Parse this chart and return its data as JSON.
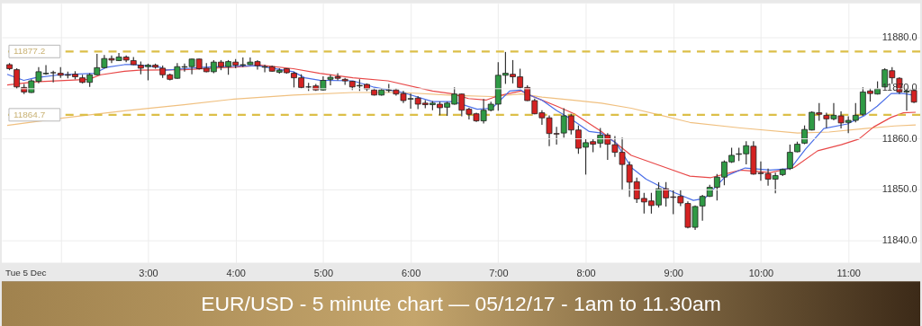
{
  "chart_data": {
    "type": "candlestick",
    "title": "EUR/USD - 5 minute chart — 05/12/17 - 1am to 11.30am",
    "annotations": [
      "Tue 5 Dec"
    ],
    "x": [
      1.4167,
      1.5,
      1.5833,
      1.6667,
      1.75,
      1.8333,
      1.9167,
      2,
      2.0833,
      2.1667,
      2.25,
      2.3333,
      2.4167,
      2.5,
      2.5833,
      2.6667,
      2.75,
      2.8333,
      2.9167,
      3,
      3.0833,
      3.1667,
      3.25,
      3.3333,
      3.4167,
      3.5,
      3.5833,
      3.6667,
      3.75,
      3.8333,
      3.9167,
      4,
      4.0833,
      4.1667,
      4.25,
      4.3333,
      4.4167,
      4.5,
      4.5833,
      4.6667,
      4.75,
      4.8333,
      4.9167,
      5,
      5.0833,
      5.1667,
      5.25,
      5.3333,
      5.4167,
      5.5,
      5.5833,
      5.6667,
      5.75,
      5.8333,
      5.9167,
      6,
      6.0833,
      6.1667,
      6.25,
      6.3333,
      6.4167,
      6.5,
      6.5833,
      6.6667,
      6.75,
      6.8333,
      6.9167,
      7,
      7.0833,
      7.1667,
      7.25,
      7.3333,
      7.4167,
      7.5,
      7.5833,
      7.6667,
      7.75,
      7.8333,
      7.9167,
      8,
      8.0833,
      8.1667,
      8.25,
      8.3333,
      8.4167,
      8.5,
      8.5833,
      8.6667,
      8.75,
      8.8333,
      8.9167,
      9,
      9.0833,
      9.1667,
      9.25,
      9.3333,
      9.4167,
      9.5,
      9.5833,
      9.6667,
      9.75,
      9.8333,
      9.9167,
      10,
      10.0833,
      10.1667,
      10.25,
      10.3333,
      10.4167,
      10.5,
      10.5833,
      10.6667,
      10.75,
      10.8333,
      10.9167,
      11,
      11.0833,
      11.1667,
      11.25,
      11.3333,
      11.4167,
      11.5,
      11.5833,
      11.6667,
      11.75
    ],
    "ohlc": [
      [
        11874.6,
        11874.9,
        11873.5,
        11873.8
      ],
      [
        11873.6,
        11873.9,
        11869.8,
        11870.2
      ],
      [
        11870.1,
        11870.8,
        11868.8,
        11869.2
      ],
      [
        11869.1,
        11871.7,
        11869.0,
        11871.4
      ],
      [
        11871.3,
        11874.1,
        11870.9,
        11873.2
      ],
      [
        11872.8,
        11874.5,
        11872.6,
        11872.9
      ],
      [
        11873.0,
        11873.4,
        11871.1,
        11873.0
      ],
      [
        11872.9,
        11874.1,
        11872.0,
        11872.5
      ],
      [
        11872.6,
        11873.2,
        11871.9,
        11872.5
      ],
      [
        11872.7,
        11873.3,
        11871.7,
        11872.2
      ],
      [
        11872.0,
        11872.6,
        11870.9,
        11871.1
      ],
      [
        11871.1,
        11872.9,
        11870.2,
        11872.6
      ],
      [
        11872.6,
        11876.7,
        11872.5,
        11874.0
      ],
      [
        11874.0,
        11876.5,
        11873.9,
        11875.8
      ],
      [
        11875.8,
        11876.4,
        11874.9,
        11875.5
      ],
      [
        11875.4,
        11876.9,
        11875.3,
        11876.1
      ],
      [
        11876.1,
        11876.4,
        11875.1,
        11875.5
      ],
      [
        11875.4,
        11876.1,
        11874.5,
        11874.6
      ],
      [
        11874.5,
        11875.2,
        11872.7,
        11873.9
      ],
      [
        11874.2,
        11874.8,
        11871.5,
        11874.5
      ],
      [
        11874.5,
        11874.8,
        11873.8,
        11874.1
      ],
      [
        11873.9,
        11874.4,
        11872.0,
        11872.6
      ],
      [
        11872.6,
        11872.8,
        11871.5,
        11871.7
      ],
      [
        11871.9,
        11874.9,
        11871.8,
        11874.2
      ],
      [
        11874.1,
        11874.8,
        11873.2,
        11874.2
      ],
      [
        11874.2,
        11875.8,
        11872.7,
        11875.7
      ],
      [
        11875.7,
        11875.8,
        11873.6,
        11873.8
      ],
      [
        11873.9,
        11874.9,
        11873.1,
        11873.2
      ],
      [
        11873.2,
        11875.5,
        11872.9,
        11875.1
      ],
      [
        11875.1,
        11875.5,
        11873.5,
        11874.2
      ],
      [
        11874.2,
        11875.5,
        11872.6,
        11875.2
      ],
      [
        11875.1,
        11875.7,
        11873.9,
        11874.5
      ],
      [
        11874.5,
        11876.0,
        11874.1,
        11874.6
      ],
      [
        11874.6,
        11876.0,
        11874.5,
        11875.1
      ],
      [
        11875.2,
        11875.5,
        11873.6,
        11874.4
      ],
      [
        11874.1,
        11874.6,
        11873.1,
        11874.2
      ],
      [
        11874.2,
        11874.4,
        11873.2,
        11873.3
      ],
      [
        11873.1,
        11873.9,
        11872.8,
        11873.5
      ],
      [
        11873.8,
        11873.9,
        11872.8,
        11873.0
      ],
      [
        11872.9,
        11873.2,
        11870.1,
        11872.0
      ],
      [
        11872.0,
        11872.7,
        11869.9,
        11870.1
      ],
      [
        11870.2,
        11871.0,
        11869.4,
        11870.2
      ],
      [
        11870.4,
        11870.8,
        11869.4,
        11869.6
      ],
      [
        11869.6,
        11872.3,
        11869.5,
        11871.5
      ],
      [
        11871.7,
        11872.6,
        11870.5,
        11872.1
      ],
      [
        11872.2,
        11872.9,
        11871.5,
        11871.9
      ],
      [
        11871.7,
        11872.0,
        11870.6,
        11871.4
      ],
      [
        11871.3,
        11871.4,
        11869.6,
        11870.2
      ],
      [
        11870.4,
        11871.7,
        11869.4,
        11870.5
      ],
      [
        11870.7,
        11870.9,
        11869.4,
        11869.8
      ],
      [
        11869.6,
        11869.9,
        11868.5,
        11868.6
      ],
      [
        11868.6,
        11869.9,
        11868.5,
        11869.6
      ],
      [
        11869.5,
        11870.8,
        11869.1,
        11869.6
      ],
      [
        11869.6,
        11869.9,
        11868.5,
        11868.8
      ],
      [
        11868.9,
        11869.4,
        11867.0,
        11867.5
      ],
      [
        11867.8,
        11868.9,
        11865.9,
        11867.9
      ],
      [
        11868.0,
        11868.4,
        11865.8,
        11866.8
      ],
      [
        11867.0,
        11867.6,
        11866.0,
        11866.7
      ],
      [
        11866.7,
        11867.4,
        11865.6,
        11867.0
      ],
      [
        11866.8,
        11867.3,
        11864.6,
        11866.1
      ],
      [
        11866.2,
        11867.3,
        11864.5,
        11867.0
      ],
      [
        11866.8,
        11870.1,
        11866.7,
        11868.8
      ],
      [
        11868.8,
        11868.9,
        11864.4,
        11865.6
      ],
      [
        11865.8,
        11866.1,
        11863.8,
        11864.8
      ],
      [
        11864.9,
        11865.1,
        11863.3,
        11863.5
      ],
      [
        11863.5,
        11867.8,
        11863.0,
        11865.6
      ],
      [
        11865.6,
        11867.3,
        11865.4,
        11866.8
      ],
      [
        11866.8,
        11875.1,
        11865.5,
        11872.5
      ],
      [
        11872.5,
        11877.1,
        11870.8,
        11872.9
      ],
      [
        11872.7,
        11875.5,
        11870.9,
        11872.2
      ],
      [
        11872.2,
        11873.8,
        11869.9,
        11870.1
      ],
      [
        11870.1,
        11870.5,
        11867.4,
        11867.5
      ],
      [
        11867.5,
        11867.9,
        11864.8,
        11864.9
      ],
      [
        11865.1,
        11865.6,
        11862.7,
        11864.1
      ],
      [
        11864.1,
        11864.6,
        11858.5,
        11861.0
      ],
      [
        11861.0,
        11862.3,
        11858.8,
        11860.9
      ],
      [
        11861.1,
        11866.0,
        11860.2,
        11864.5
      ],
      [
        11864.5,
        11864.9,
        11860.8,
        11861.7
      ],
      [
        11861.7,
        11862.6,
        11857.0,
        11858.1
      ],
      [
        11858.3,
        11859.9,
        11852.9,
        11859.2
      ],
      [
        11859.4,
        11859.9,
        11857.3,
        11858.9
      ],
      [
        11859.1,
        11862.1,
        11858.2,
        11860.7
      ],
      [
        11860.7,
        11861.1,
        11855.8,
        11858.9
      ],
      [
        11858.8,
        11860.5,
        11856.4,
        11857.3
      ],
      [
        11857.3,
        11860.2,
        11849.8,
        11854.9
      ],
      [
        11854.8,
        11855.5,
        11848.5,
        11851.4
      ],
      [
        11851.5,
        11852.3,
        11847.3,
        11848.1
      ],
      [
        11848.2,
        11849.3,
        11845.2,
        11847.5
      ],
      [
        11847.7,
        11849.3,
        11845.2,
        11846.8
      ],
      [
        11846.9,
        11851.4,
        11846.4,
        11850.1
      ],
      [
        11850.1,
        11851.4,
        11846.6,
        11848.3
      ],
      [
        11848.5,
        11849.8,
        11845.1,
        11848.4
      ],
      [
        11848.6,
        11849.9,
        11846.7,
        11847.3
      ],
      [
        11847.2,
        11847.6,
        11842.3,
        11842.5
      ],
      [
        11842.5,
        11846.8,
        11842.0,
        11846.6
      ],
      [
        11846.7,
        11848.9,
        11843.8,
        11848.6
      ],
      [
        11848.6,
        11850.9,
        11848.5,
        11850.4
      ],
      [
        11850.4,
        11853.0,
        11847.8,
        11852.4
      ],
      [
        11852.4,
        11855.7,
        11850.8,
        11855.4
      ],
      [
        11855.4,
        11858.2,
        11855.2,
        11856.7
      ],
      [
        11856.9,
        11858.2,
        11855.6,
        11857.0
      ],
      [
        11857.0,
        11859.5,
        11854.9,
        11858.6
      ],
      [
        11858.5,
        11859.5,
        11852.9,
        11853.0
      ],
      [
        11853.2,
        11855.5,
        11851.7,
        11853.1
      ],
      [
        11853.1,
        11854.1,
        11850.7,
        11852.0
      ],
      [
        11852.0,
        11853.3,
        11849.2,
        11852.7
      ],
      [
        11852.9,
        11854.1,
        11852.6,
        11853.9
      ],
      [
        11854.1,
        11858.8,
        11853.8,
        11857.3
      ],
      [
        11857.4,
        11859.4,
        11857.3,
        11858.9
      ],
      [
        11859.1,
        11862.6,
        11858.9,
        11861.8
      ],
      [
        11861.7,
        11865.4,
        11861.6,
        11865.2
      ],
      [
        11865.1,
        11867.0,
        11863.5,
        11864.8
      ],
      [
        11864.6,
        11865.1,
        11862.1,
        11863.9
      ],
      [
        11863.9,
        11867.0,
        11863.6,
        11864.6
      ],
      [
        11864.5,
        11865.4,
        11862.0,
        11863.1
      ],
      [
        11863.2,
        11864.4,
        11861.1,
        11863.6
      ],
      [
        11863.6,
        11867.0,
        11863.2,
        11864.6
      ],
      [
        11864.8,
        11870.1,
        11864.5,
        11869.2
      ],
      [
        11869.4,
        11869.9,
        11867.3,
        11868.9
      ],
      [
        11868.8,
        11871.3,
        11868.7,
        11869.8
      ],
      [
        11870.2,
        11873.9,
        11870.1,
        11873.6
      ],
      [
        11873.4,
        11874.1,
        11870.8,
        11872.0
      ],
      [
        11871.9,
        11872.1,
        11868.8,
        11869.2
      ],
      [
        11869.2,
        11869.9,
        11865.5,
        11869.4
      ],
      [
        11869.5,
        11869.9,
        11867.0,
        11867.2
      ]
    ],
    "series": [
      {
        "type": "line",
        "color": "#f0c080",
        "x": [
          1.39,
          2.05,
          2.73,
          3.41,
          3.98,
          4.66,
          5.34,
          5.91,
          6.52,
          6.93,
          7.26,
          7.5,
          7.84,
          8.18,
          8.52,
          8.86,
          9.19,
          9.77,
          10.42,
          10.78,
          11.19,
          11.53,
          11.77
        ],
        "values": [
          11862.6,
          11864.1,
          11865.5,
          11866.7,
          11867.8,
          11868.6,
          11869.1,
          11869.1,
          11868.5,
          11868.3,
          11868.8,
          11868.2,
          11867.6,
          11867.0,
          11866.0,
          11864.6,
          11863.2,
          11862.1,
          11861.1,
          11861.3,
          11862.0,
          11862.5,
          11862.7
        ]
      },
      {
        "type": "line",
        "color": "#e84848",
        "x": [
          1.39,
          1.71,
          2.32,
          2.46,
          2.73,
          2.9,
          3.41,
          3.98,
          4.29,
          4.66,
          4.96,
          5.34,
          5.74,
          6.25,
          6.49,
          6.66,
          6.86,
          6.99,
          7.26,
          7.37,
          7.67,
          7.87,
          8.18,
          8.52,
          8.86,
          9.19,
          9.43,
          9.77,
          10.11,
          10.38,
          10.65,
          10.92,
          11.12,
          11.29,
          11.49,
          11.63,
          11.77
        ],
        "values": [
          11870.6,
          11871.2,
          11871.7,
          11872.6,
          11873.3,
          11873.5,
          11873.6,
          11874.1,
          11874.5,
          11873.8,
          11872.9,
          11872.0,
          11871.4,
          11869.4,
          11868.8,
          11867.9,
          11867.6,
          11868.4,
          11869.4,
          11868.5,
          11866.4,
          11864.9,
          11861.4,
          11856.7,
          11854.6,
          11852.6,
          11852.3,
          11853.8,
          11853.3,
          11854.3,
          11857.6,
          11858.8,
          11859.9,
          11862.3,
          11864.2,
          11865.1,
          11865.2
        ]
      },
      {
        "type": "line",
        "color": "#4a6ee8",
        "x": [
          1.39,
          1.58,
          1.71,
          1.99,
          2.39,
          2.53,
          2.73,
          2.83,
          3.14,
          3.2,
          3.41,
          3.64,
          4.25,
          4.66,
          4.79,
          4.96,
          5.34,
          5.57,
          5.91,
          6.25,
          6.49,
          6.76,
          6.93,
          7.13,
          7.26,
          7.33,
          7.5,
          7.67,
          7.84,
          8.04,
          8.18,
          8.35,
          8.52,
          8.69,
          8.86,
          9.02,
          9.23,
          9.36,
          9.6,
          9.82,
          10.11,
          10.34,
          10.51,
          10.72,
          10.99,
          11.19,
          11.33,
          11.49,
          11.63,
          11.77
        ],
        "values": [
          11872.7,
          11871.5,
          11872.0,
          11872.6,
          11872.9,
          11874.1,
          11874.6,
          11874.6,
          11874.1,
          11873.5,
          11873.8,
          11874.1,
          11874.4,
          11873.2,
          11872.0,
          11871.5,
          11871.4,
          11870.2,
          11869.1,
          11867.3,
          11867.3,
          11865.8,
          11866.0,
          11869.4,
          11869.6,
          11868.8,
          11867.6,
          11865.5,
          11863.8,
          11861.4,
          11861.1,
          11859.1,
          11854.3,
          11852.0,
          11850.5,
          11849.3,
          11847.8,
          11848.2,
          11852.6,
          11854.2,
          11853.8,
          11854.1,
          11857.9,
          11862.0,
          11862.9,
          11864.6,
          11866.4,
          11868.9,
          11868.9,
          11868.5
        ]
      }
    ],
    "xlim": [
      1.38,
      11.77
    ],
    "ylim": [
      11835.5,
      11886.7
    ],
    "xticks": [
      {
        "value": 2,
        "label": null
      },
      {
        "value": 3,
        "label": "3:00"
      },
      {
        "value": 4,
        "label": "4:00"
      },
      {
        "value": 5,
        "label": "5:00"
      },
      {
        "value": 6,
        "label": "6:00"
      },
      {
        "value": 7,
        "label": "7:00"
      },
      {
        "value": 8,
        "label": "8:00"
      },
      {
        "value": 9,
        "label": "9:00"
      },
      {
        "value": 10,
        "label": "10:00"
      },
      {
        "value": 11,
        "label": "11:00"
      }
    ],
    "yticks": [
      {
        "value": 11840,
        "label": "11840.0"
      },
      {
        "value": 11850,
        "label": "11850.0"
      },
      {
        "value": 11860,
        "label": "11860.0"
      },
      {
        "value": 11870,
        "label": "11870.0"
      },
      {
        "value": 11880,
        "label": "11880.0"
      }
    ],
    "ref_lines": [
      {
        "axis": "y",
        "value": 11877.2,
        "label": "11877.2",
        "color": "#dcbf48",
        "line_style": "dashed"
      },
      {
        "axis": "y",
        "value": 11864.7,
        "label": "11864.7",
        "color": "#dcbf48",
        "line_style": "dashed"
      }
    ],
    "grid": true
  }
}
